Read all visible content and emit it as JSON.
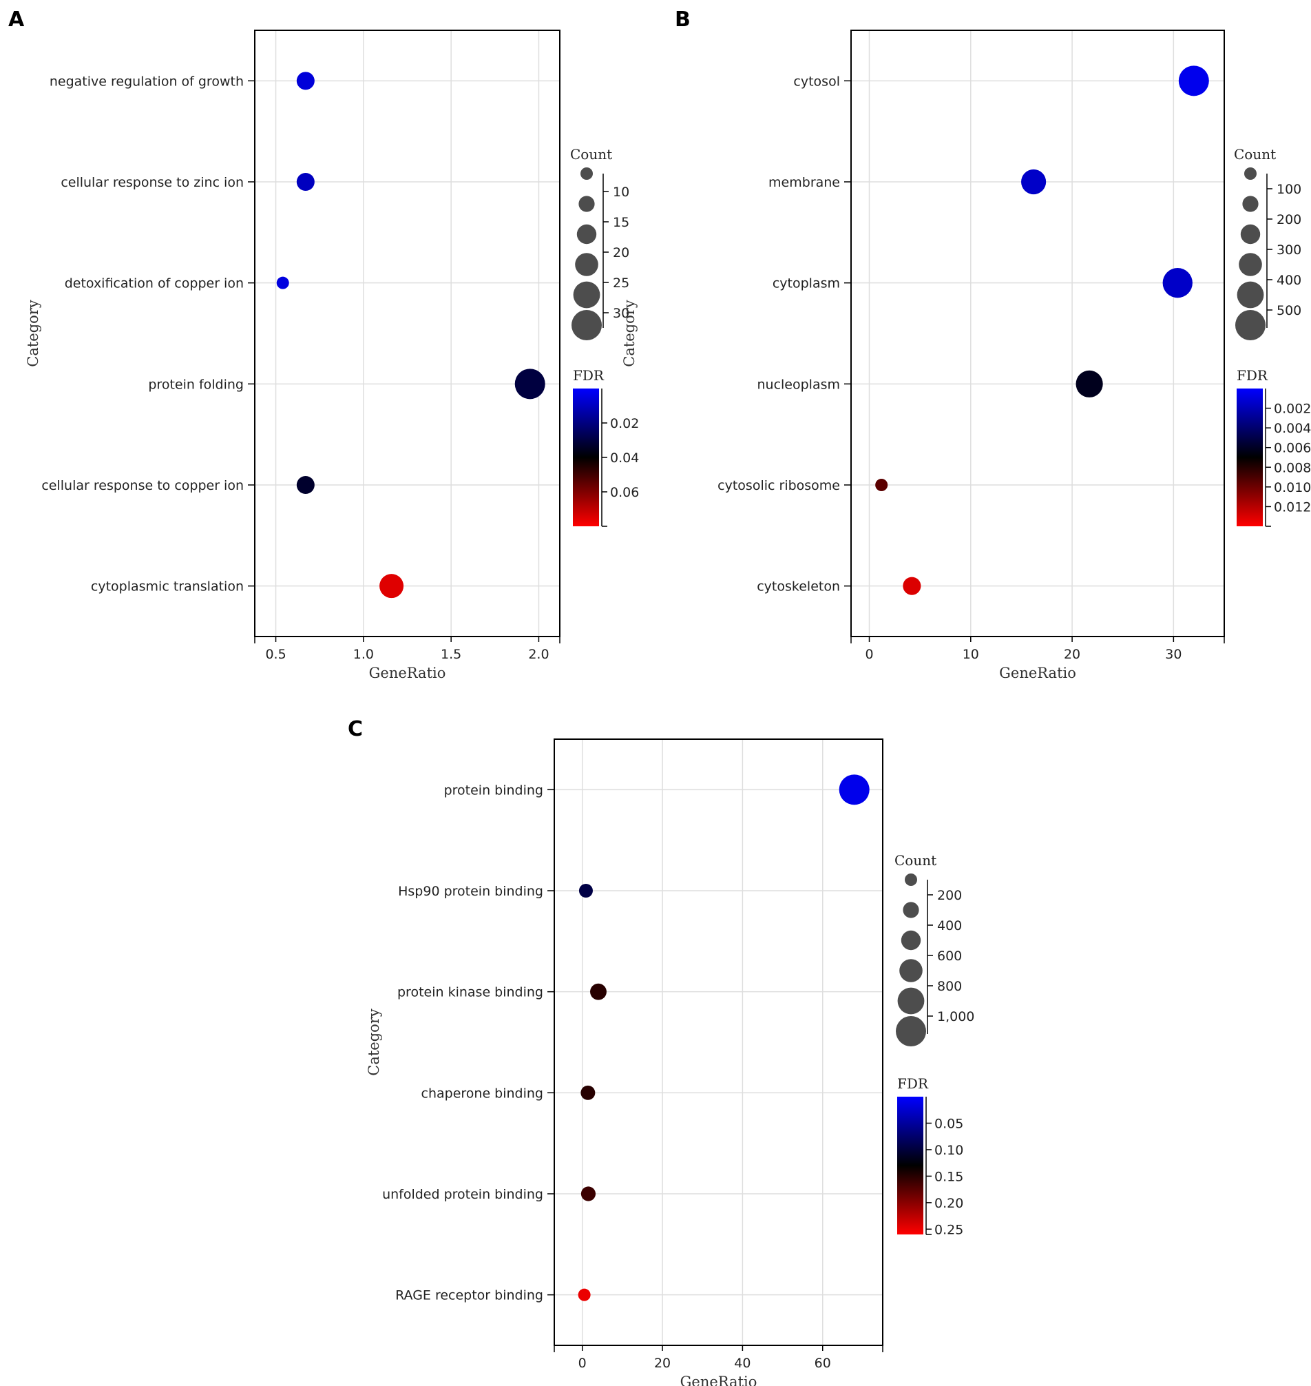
{
  "colors": {
    "low_fdr": "#0000ff",
    "mid_fdr": "#000000",
    "high_fdr": "#ff0000",
    "bubble_legend": "#4d4d4d",
    "grid": "#dedede"
  },
  "chart_data": [
    {
      "panel_label": "A",
      "type": "scatter",
      "xlabel": "GeneRatio",
      "ylabel": "Category",
      "xlim": [
        0.38,
        2.12
      ],
      "xticks": [
        0.5,
        1.0,
        1.5,
        2.0
      ],
      "xtick_labels": [
        "0.5",
        "1.0",
        "1.5",
        "2.0"
      ],
      "grid": true,
      "categories": [
        "negative regulation of growth",
        "cellular response to zinc ion",
        "detoxification of copper ion",
        "protein folding",
        "cellular response to copper ion",
        "cytoplasmic translation"
      ],
      "points": [
        {
          "category": "negative regulation of growth",
          "gene_ratio": 0.67,
          "count": 10,
          "fdr": 0.006
        },
        {
          "category": "cellular response to zinc ion",
          "gene_ratio": 0.67,
          "count": 10,
          "fdr": 0.01
        },
        {
          "category": "detoxification of copper ion",
          "gene_ratio": 0.54,
          "count": 8,
          "fdr": 0.005
        },
        {
          "category": "protein folding",
          "gene_ratio": 1.95,
          "count": 29,
          "fdr": 0.03
        },
        {
          "category": "cellular response to copper ion",
          "gene_ratio": 0.67,
          "count": 10,
          "fdr": 0.033
        },
        {
          "category": "cytoplasmic translation",
          "gene_ratio": 1.16,
          "count": 17,
          "fdr": 0.075
        }
      ],
      "size_legend": {
        "title": "Count",
        "ticks": [
          "10",
          "15",
          "20",
          "25",
          "30"
        ]
      },
      "color_legend": {
        "title": "FDR",
        "ticks": [
          "0.02",
          "0.04",
          "0.06"
        ]
      }
    },
    {
      "panel_label": "B",
      "type": "scatter",
      "xlabel": "GeneRatio",
      "ylabel": "Category",
      "xlim": [
        -1.8,
        35
      ],
      "xticks": [
        0,
        10,
        20,
        30
      ],
      "xtick_labels": [
        "0",
        "10",
        "20",
        "30"
      ],
      "grid": true,
      "categories": [
        "cytosol",
        "membrane",
        "cytoplasm",
        "nucleoplasm",
        "cytosolic ribosome",
        "cytoskeleton"
      ],
      "points": [
        {
          "category": "cytosol",
          "gene_ratio": 32,
          "count": 480,
          "fdr": 0.0005
        },
        {
          "category": "membrane",
          "gene_ratio": 16.2,
          "count": 243,
          "fdr": 0.0015
        },
        {
          "category": "cytoplasm",
          "gene_ratio": 30.4,
          "count": 456,
          "fdr": 0.0015
        },
        {
          "category": "nucleoplasm",
          "gene_ratio": 21.7,
          "count": 325,
          "fdr": 0.0062
        },
        {
          "category": "cytosolic ribosome",
          "gene_ratio": 1.2,
          "count": 18,
          "fdr": 0.0095
        },
        {
          "category": "cytoskeleton",
          "gene_ratio": 4.2,
          "count": 63,
          "fdr": 0.013
        }
      ],
      "size_legend": {
        "title": "Count",
        "ticks": [
          "100",
          "200",
          "300",
          "400",
          "500"
        ]
      },
      "color_legend": {
        "title": "FDR",
        "ticks": [
          "0.002",
          "0.004",
          "0.006",
          "0.008",
          "0.010",
          "0.012"
        ]
      }
    },
    {
      "panel_label": "C",
      "type": "scatter",
      "xlabel": "GeneRatio",
      "ylabel": "Category",
      "xlim": [
        -7,
        75
      ],
      "xticks": [
        0,
        20,
        40,
        60
      ],
      "xtick_labels": [
        "0",
        "20",
        "40",
        "60"
      ],
      "grid": true,
      "categories": [
        "protein binding",
        "Hsp90 protein binding",
        "protein kinase binding",
        "chaperone binding",
        "unfolded protein binding",
        "RAGE receptor binding"
      ],
      "points": [
        {
          "category": "protein binding",
          "gene_ratio": 67.9,
          "count": 1020,
          "fdr": 0.01
        },
        {
          "category": "Hsp90 protein binding",
          "gene_ratio": 0.9,
          "count": 14,
          "fdr": 0.095
        },
        {
          "category": "protein kinase binding",
          "gene_ratio": 4.0,
          "count": 60,
          "fdr": 0.15
        },
        {
          "category": "chaperone binding",
          "gene_ratio": 1.4,
          "count": 21,
          "fdr": 0.15
        },
        {
          "category": "unfolded protein binding",
          "gene_ratio": 1.5,
          "count": 23,
          "fdr": 0.16
        },
        {
          "category": "RAGE receptor binding",
          "gene_ratio": 0.5,
          "count": 8,
          "fdr": 0.25
        }
      ],
      "size_legend": {
        "title": "Count",
        "ticks": [
          "200",
          "400",
          "600",
          "800",
          "1,000"
        ]
      },
      "color_legend": {
        "title": "FDR",
        "ticks": [
          "0.05",
          "0.10",
          "0.15",
          "0.20",
          "0.25"
        ]
      }
    }
  ]
}
